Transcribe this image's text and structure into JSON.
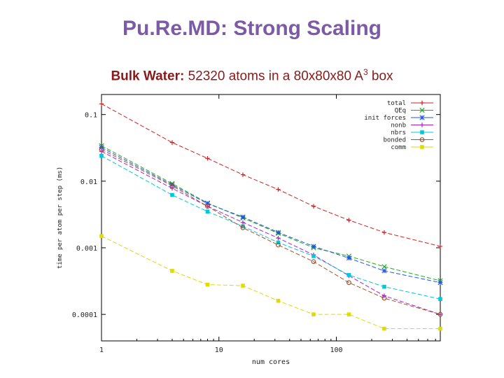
{
  "slide": {
    "title": "Pu.Re.MD: Strong Scaling",
    "subtitle_bold": "Bulk Water:",
    "subtitle_text": " 52320 atoms in a 80x80x80 A",
    "subtitle_sup": "3",
    "subtitle_tail": " box"
  },
  "chart_data": {
    "type": "line",
    "title": "",
    "xlabel": "num cores",
    "ylabel": "time per atom per step (ms)",
    "x_scale": "log",
    "y_scale": "log",
    "xlim": [
      1,
      768
    ],
    "ylim": [
      4e-05,
      0.2
    ],
    "x_ticks": [
      {
        "value": 1,
        "label": "1"
      },
      {
        "value": 10,
        "label": "10"
      },
      {
        "value": 100,
        "label": "100"
      }
    ],
    "y_ticks": [
      {
        "value": 0.1,
        "label": "0.1"
      },
      {
        "value": 0.01,
        "label": "0.01"
      },
      {
        "value": 0.001,
        "label": "0.001"
      },
      {
        "value": 0.0001,
        "label": "0.0001"
      }
    ],
    "grid": false,
    "legend_position": "top-right",
    "x": [
      1,
      4,
      8,
      16,
      32,
      64,
      128,
      256,
      768
    ],
    "series": [
      {
        "name": "total",
        "color": "#cc2222",
        "marker": "plus",
        "values": [
          0.145,
          0.038,
          0.022,
          0.0125,
          0.0075,
          0.0042,
          0.0026,
          0.0017,
          0.00105
        ]
      },
      {
        "name": "QEq",
        "color": "#22aa22",
        "marker": "x",
        "values": [
          0.034,
          0.0092,
          0.0047,
          0.0028,
          0.00165,
          0.001,
          0.00075,
          0.00052,
          0.00032
        ]
      },
      {
        "name": "init forces",
        "color": "#2255dd",
        "marker": "star",
        "values": [
          0.032,
          0.0088,
          0.0046,
          0.0029,
          0.0017,
          0.00105,
          0.0007,
          0.00045,
          0.0003
        ]
      },
      {
        "name": "nonb",
        "color": "#aa22cc",
        "marker": "plus",
        "values": [
          0.028,
          0.0078,
          0.0042,
          0.0024,
          0.0014,
          0.00078,
          0.00038,
          0.00019,
          0.0001
        ]
      },
      {
        "name": "nbrs",
        "color": "#00c8d8",
        "marker": "filled-square",
        "values": [
          0.024,
          0.0062,
          0.0035,
          0.0021,
          0.0012,
          0.00075,
          0.00039,
          0.00026,
          0.00017
        ]
      },
      {
        "name": "bonded",
        "color": "#a0522d",
        "marker": "open-circle",
        "values": [
          0.03,
          0.0085,
          0.0042,
          0.002,
          0.0011,
          0.00062,
          0.0003,
          0.000175,
          0.0001
        ]
      },
      {
        "name": "comm",
        "color": "#dddd00",
        "marker": "filled-square",
        "values": [
          0.0015,
          0.00045,
          0.00028,
          0.00027,
          0.00016,
          0.0001,
          0.0001,
          6.1e-05,
          6.1e-05
        ]
      }
    ]
  }
}
